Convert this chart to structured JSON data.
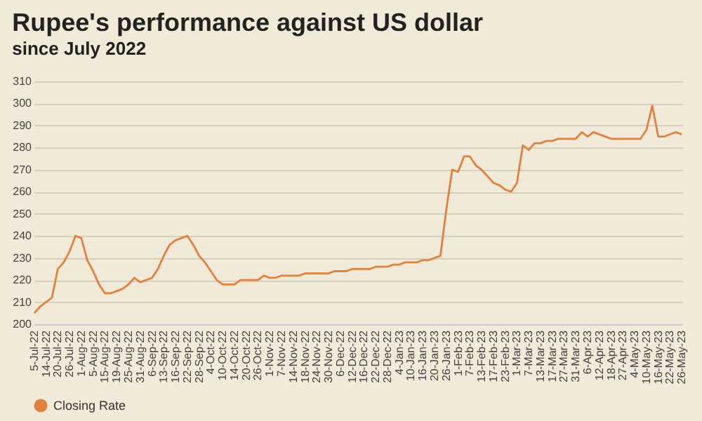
{
  "chart_data": {
    "type": "line",
    "title": "Rupee's performance against US dollar",
    "subtitle": "since July 2022",
    "categories": [
      "5-Jul-22",
      null,
      "14-Jul-22",
      null,
      "20-Jul-22",
      null,
      "26-Jul-22",
      null,
      "1-Aug-22",
      null,
      "5-Aug-22",
      null,
      "15-Aug-22",
      null,
      "19-Aug-22",
      null,
      "25-Aug-22",
      null,
      "31-Aug-22",
      null,
      "6-Sep-22",
      null,
      "13-Sep-22",
      null,
      "16-Sep-22",
      null,
      "22-Sep-22",
      null,
      "28-Sep-22",
      null,
      "4-Oct-22",
      null,
      "10-Oct-22",
      null,
      "14-Oct-22",
      null,
      "20-Oct-22",
      null,
      "26-Oct-22",
      null,
      "1-Nov-22",
      null,
      "7-Nov-22",
      null,
      "14-Nov-22",
      null,
      "18-Nov-22",
      null,
      "24-Nov-22",
      null,
      "30-Nov-22",
      null,
      "6-Dec-22",
      null,
      "12-Dec-22",
      null,
      "16-Dec-22",
      null,
      "22-Dec-22",
      null,
      "28-Dec-22",
      null,
      "4-Jan-23",
      null,
      "10-Jan-23",
      null,
      "16-Jan-23",
      null,
      "20-Jan-23",
      null,
      "26-Jan-23",
      null,
      "1-Feb-23",
      null,
      "7-Feb-23",
      null,
      "13-Feb-23",
      null,
      "17-Feb-23",
      null,
      "23-Feb-23",
      null,
      "1-Mar-23",
      null,
      "7-Mar-23",
      null,
      "13-Mar-23",
      null,
      "17-Mar-23",
      null,
      "27-Mar-23",
      null,
      "31-Mar-23",
      null,
      "6-Apr-23",
      null,
      "12-Apr-23",
      null,
      "18-Apr-23",
      null,
      "27-Apr-23",
      null,
      "4-May-23",
      null,
      "10-May-23",
      null,
      "16-May-23",
      null,
      "22-May-23",
      null,
      "26-May-23"
    ],
    "series": [
      {
        "name": "Closing Rate",
        "color": "#e0823e",
        "values": [
          205,
          208,
          210,
          212,
          225,
          228,
          233,
          240,
          239,
          229,
          224,
          218,
          214,
          214,
          215,
          216,
          218,
          221,
          219,
          220,
          221,
          225,
          231,
          236,
          238,
          239,
          240,
          236,
          231,
          228,
          224,
          220,
          218,
          218,
          218,
          220,
          220,
          220,
          220,
          222,
          221,
          221,
          222,
          222,
          222,
          222,
          223,
          223,
          223,
          223,
          223,
          224,
          224,
          224,
          225,
          225,
          225,
          225,
          226,
          226,
          226,
          227,
          227,
          228,
          228,
          228,
          229,
          229,
          230,
          231,
          252,
          270,
          269,
          276,
          276,
          272,
          270,
          267,
          264,
          263,
          261,
          260,
          264,
          281,
          279,
          282,
          282,
          283,
          283,
          284,
          284,
          284,
          284,
          287,
          285,
          287,
          286,
          285,
          284,
          284,
          284,
          284,
          284,
          284,
          288,
          299,
          285,
          285,
          286,
          287,
          286
        ]
      }
    ],
    "ylim": [
      200,
      310
    ],
    "yticks": [
      200,
      210,
      220,
      230,
      240,
      250,
      260,
      270,
      280,
      290,
      300,
      310
    ],
    "grid": "y",
    "legend": "bottom"
  }
}
